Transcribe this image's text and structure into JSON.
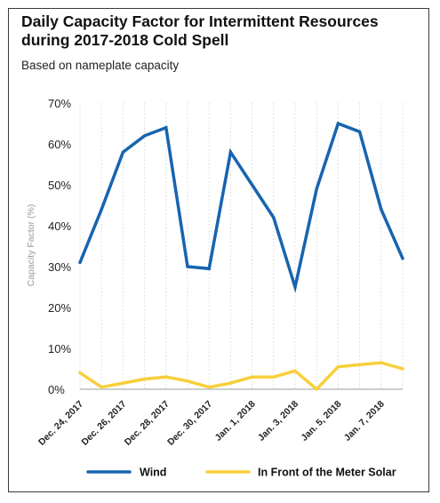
{
  "chart_data": {
    "type": "line",
    "title": "Daily Capacity Factor for Intermittent Resources during 2017-2018 Cold Spell",
    "subtitle": "Based on nameplate capacity",
    "ylabel": "Capacity Factor (%)",
    "xlabel": "",
    "ylim": [
      0,
      70
    ],
    "yticks": [
      "0%",
      "10%",
      "20%",
      "30%",
      "40%",
      "50%",
      "60%",
      "70%"
    ],
    "x": [
      "Dec. 24, 2017",
      "Dec. 25, 2017",
      "Dec. 26, 2017",
      "Dec. 27, 2017",
      "Dec. 28, 2017",
      "Dec. 29, 2017",
      "Dec. 30, 2017",
      "Dec. 31, 2017",
      "Jan. 1, 2018",
      "Jan. 2, 2018",
      "Jan. 3, 2018",
      "Jan. 4, 2018",
      "Jan. 5, 2018",
      "Jan. 6, 2018",
      "Jan. 7, 2018",
      "Jan. 8, 2018"
    ],
    "xtick_labels": [
      "Dec. 24, 2017",
      "Dec. 26, 2017",
      "Dec. 28, 2017",
      "Dec. 30, 2017",
      "Jan. 1, 2018",
      "Jan. 3, 2018",
      "Jan. 5, 2018",
      "Jan. 7, 2018"
    ],
    "series": [
      {
        "name": "Wind",
        "color": "#1764b0",
        "values": [
          31,
          44,
          58,
          62,
          64,
          30,
          29.5,
          58,
          50,
          42,
          25,
          49,
          65,
          63,
          44,
          32
        ]
      },
      {
        "name": "In Front of the Meter Solar",
        "color": "#f7cf3a",
        "values": [
          4,
          0.5,
          1.5,
          2.5,
          3,
          2,
          0.5,
          1.5,
          3,
          3,
          4.5,
          0,
          5.5,
          6,
          6.5,
          5
        ]
      }
    ],
    "grid": "vertical",
    "legend": "bottom"
  }
}
